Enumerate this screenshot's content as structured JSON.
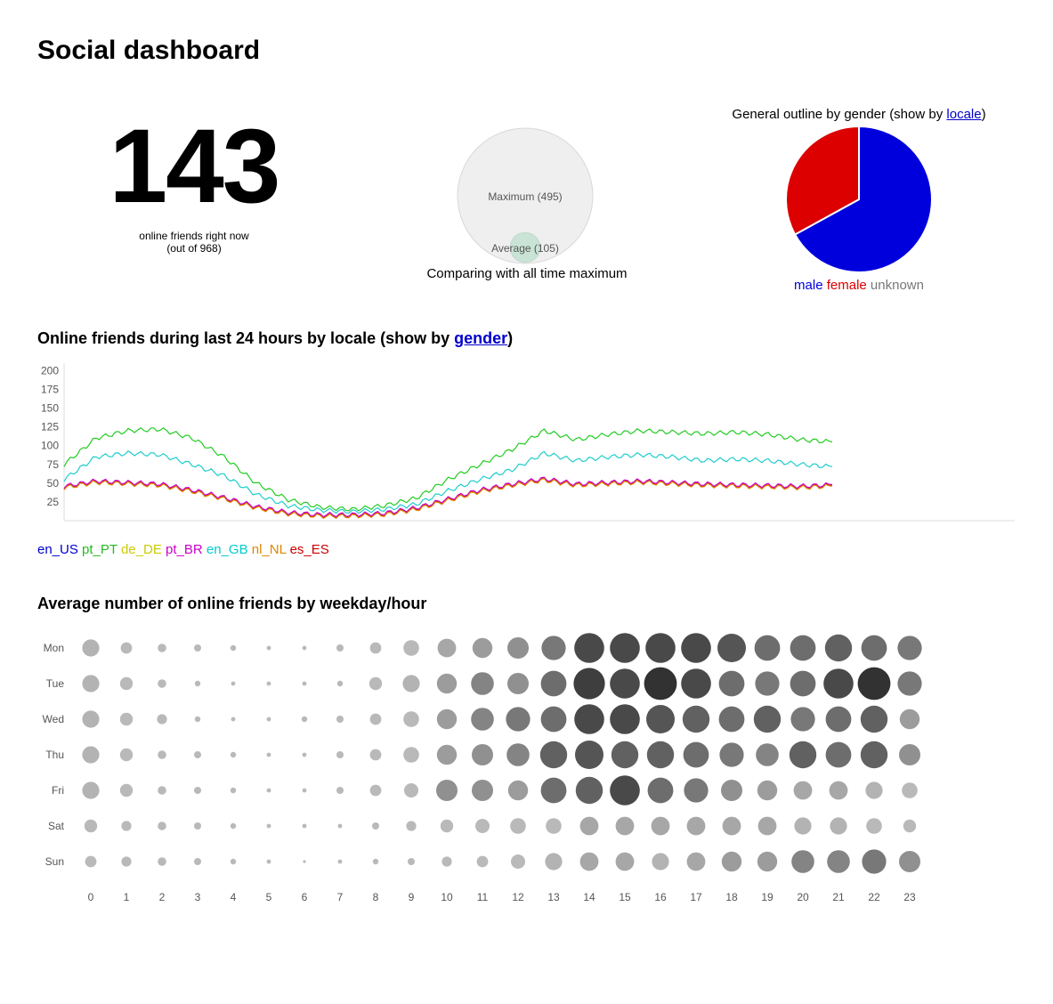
{
  "page": {
    "title": "Social dashboard"
  },
  "online": {
    "count": "143",
    "caption_line1": "online friends right now",
    "caption_line2": "(out of 968)"
  },
  "comparison": {
    "max_label": "Maximum (495)",
    "avg_label": "Average (105)",
    "max_value": 495,
    "avg_value": 105,
    "caption": "Comparing with all time maximum",
    "colors": {
      "max": "#efefef",
      "avg": "#c9e3d6"
    }
  },
  "gender_pie": {
    "title_prefix": "General outline by gender (show by ",
    "title_link": "locale",
    "title_suffix": ")",
    "legend": [
      {
        "label": "male",
        "color": "#0000dd"
      },
      {
        "label": "female",
        "color": "#dd0000"
      },
      {
        "label": "unknown",
        "color": "#777777"
      }
    ]
  },
  "timeline": {
    "title_prefix": "Online friends during last 24 hours by locale (show by ",
    "title_link": "gender",
    "title_suffix": ")",
    "legend": [
      {
        "label": "en_US",
        "color": "#0000cc"
      },
      {
        "label": "pt_PT",
        "color": "#22bb22"
      },
      {
        "label": "de_DE",
        "color": "#cccc00"
      },
      {
        "label": "pt_BR",
        "color": "#cc00cc"
      },
      {
        "label": "en_GB",
        "color": "#00cccc"
      },
      {
        "label": "nl_NL",
        "color": "#dd8800"
      },
      {
        "label": "es_ES",
        "color": "#cc0000"
      }
    ]
  },
  "punchcard": {
    "title": "Average number of online friends by weekday/hour"
  },
  "chart_data": [
    {
      "type": "pie",
      "slices": [
        {
          "label": "male",
          "value": 67,
          "color": "#0000dd"
        },
        {
          "label": "female",
          "value": 33,
          "color": "#dd0000"
        },
        {
          "label": "unknown",
          "value": 0,
          "color": "#777777"
        }
      ]
    },
    {
      "type": "line",
      "x": [
        0,
        1,
        2,
        3,
        4,
        5,
        6,
        7,
        8,
        9,
        10,
        11,
        12,
        13,
        14,
        15,
        16,
        17,
        18,
        19,
        20,
        21,
        22,
        23,
        24
      ],
      "ylim": [
        0,
        210
      ],
      "yticks": [
        25,
        50,
        75,
        100,
        125,
        150,
        175,
        200
      ],
      "series": [
        {
          "name": "pt_PT",
          "color": "#22cc22",
          "values": [
            75,
            110,
            120,
            122,
            110,
            85,
            50,
            28,
            18,
            15,
            20,
            30,
            55,
            75,
            95,
            120,
            108,
            115,
            120,
            118,
            116,
            118,
            115,
            108,
            105
          ]
        },
        {
          "name": "en_GB",
          "color": "#22cccc",
          "values": [
            55,
            85,
            90,
            88,
            75,
            60,
            35,
            20,
            14,
            12,
            15,
            22,
            40,
            55,
            68,
            90,
            80,
            85,
            88,
            85,
            80,
            82,
            80,
            75,
            72
          ]
        },
        {
          "name": "es_ES",
          "color": "#cc3300",
          "values": [
            45,
            52,
            50,
            48,
            40,
            30,
            18,
            10,
            7,
            7,
            9,
            16,
            28,
            40,
            48,
            55,
            48,
            50,
            52,
            50,
            48,
            47,
            46,
            45,
            47
          ]
        },
        {
          "name": "pt_BR",
          "color": "#cc00cc",
          "values": [
            46,
            53,
            51,
            49,
            41,
            31,
            19,
            11,
            8,
            8,
            10,
            17,
            29,
            41,
            49,
            56,
            49,
            51,
            53,
            51,
            49,
            48,
            47,
            46,
            48
          ]
        },
        {
          "name": "nl_NL",
          "color": "#dd8800",
          "values": [
            44,
            51,
            49,
            47,
            39,
            29,
            17,
            9,
            6,
            6,
            8,
            15,
            27,
            39,
            47,
            54,
            47,
            49,
            51,
            49,
            47,
            46,
            45,
            44,
            46
          ]
        }
      ]
    },
    {
      "type": "scatter",
      "days": [
        "Mon",
        "Tue",
        "Wed",
        "Thu",
        "Fri",
        "Sat",
        "Sun"
      ],
      "hours": [
        "0",
        "1",
        "2",
        "3",
        "4",
        "5",
        "6",
        "7",
        "8",
        "9",
        "10",
        "11",
        "12",
        "13",
        "14",
        "15",
        "16",
        "17",
        "18",
        "19",
        "20",
        "21",
        "22",
        "23"
      ],
      "values": [
        [
          12,
          8,
          6,
          5,
          4,
          3,
          3,
          5,
          8,
          11,
          13,
          14,
          15,
          17,
          21,
          21,
          21,
          21,
          20,
          18,
          18,
          19,
          18,
          17
        ],
        [
          12,
          9,
          6,
          4,
          3,
          3,
          3,
          4,
          9,
          12,
          14,
          16,
          15,
          18,
          22,
          21,
          23,
          21,
          18,
          17,
          18,
          21,
          23,
          17
        ],
        [
          12,
          9,
          7,
          4,
          3,
          3,
          4,
          5,
          8,
          11,
          14,
          16,
          17,
          18,
          21,
          21,
          20,
          19,
          18,
          19,
          17,
          18,
          19,
          14
        ],
        [
          12,
          9,
          6,
          5,
          4,
          3,
          3,
          5,
          8,
          11,
          14,
          15,
          16,
          19,
          20,
          19,
          19,
          18,
          17,
          16,
          19,
          18,
          19,
          15
        ],
        [
          12,
          9,
          6,
          5,
          4,
          3,
          3,
          5,
          8,
          10,
          15,
          15,
          14,
          18,
          19,
          21,
          18,
          17,
          15,
          14,
          13,
          13,
          12,
          11
        ],
        [
          9,
          7,
          6,
          5,
          4,
          3,
          3,
          3,
          5,
          7,
          9,
          10,
          11,
          11,
          13,
          13,
          13,
          13,
          13,
          13,
          12,
          12,
          11,
          9
        ],
        [
          8,
          7,
          6,
          5,
          4,
          3,
          2,
          3,
          4,
          5,
          7,
          8,
          10,
          12,
          13,
          13,
          12,
          13,
          14,
          14,
          16,
          16,
          17,
          15
        ]
      ]
    }
  ]
}
